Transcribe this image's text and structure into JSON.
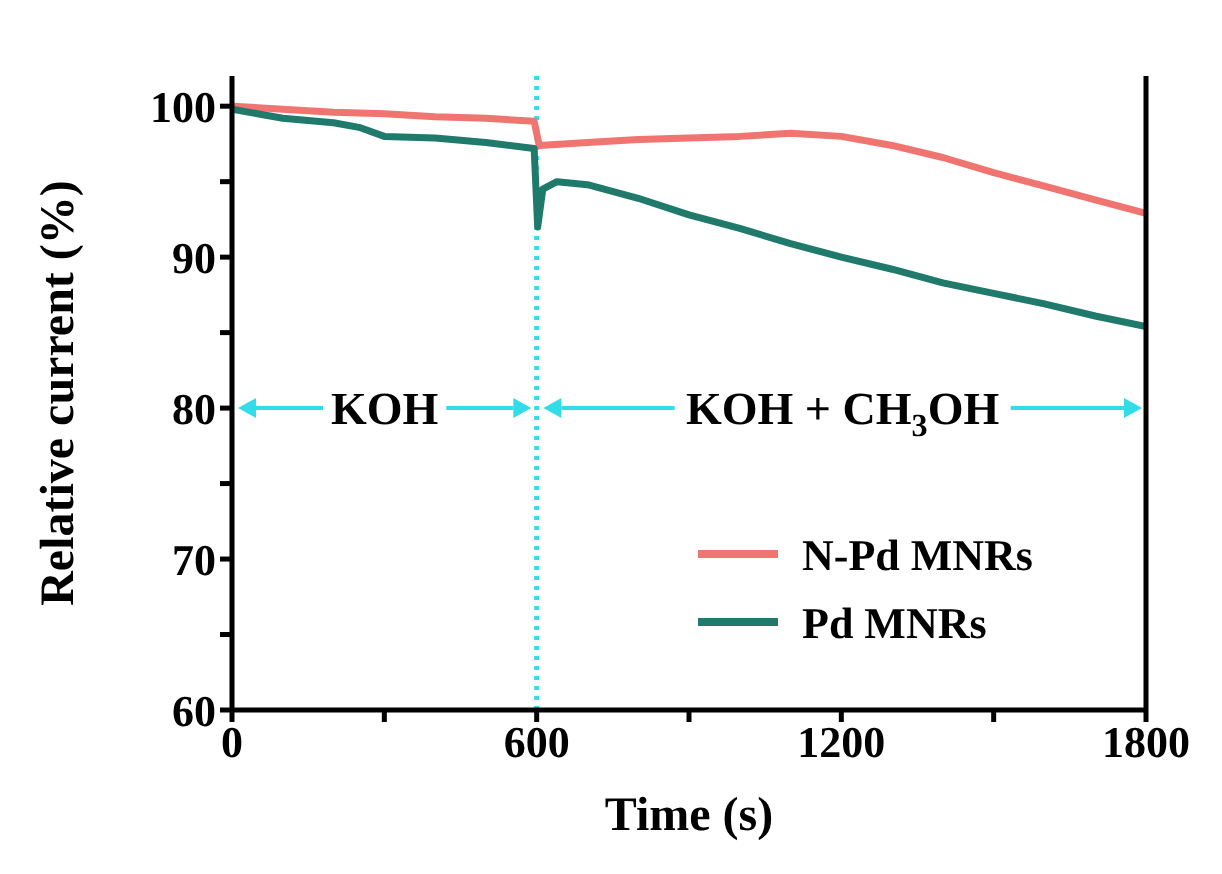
{
  "chart_data": {
    "type": "line",
    "xlabel": "Time (s)",
    "ylabel": "Relative current (%)",
    "xlim": [
      0,
      1800
    ],
    "xticks": [
      0,
      {
        "value": 300,
        "label": null
      },
      600,
      {
        "value": 900,
        "label": null
      },
      1200,
      {
        "value": 1500,
        "label": null
      },
      1800
    ],
    "ylim": [
      60,
      102
    ],
    "yticks": [
      60,
      {
        "value": 65,
        "label": null
      },
      70,
      {
        "value": 75,
        "label": null
      },
      80,
      {
        "value": 85,
        "label": null
      },
      90,
      {
        "value": 95,
        "label": null
      },
      100
    ],
    "grid": false,
    "legend": "bottom right",
    "marker": "none",
    "line_style": "solid",
    "series": [
      {
        "name": "N-Pd MNRs",
        "color": "#f07470",
        "x": [
          0,
          100,
          200,
          300,
          400,
          500,
          595,
          605,
          700,
          800,
          900,
          1000,
          1100,
          1200,
          1300,
          1400,
          1500,
          1600,
          1700,
          1800
        ],
        "values": [
          100,
          99.8,
          99.6,
          99.5,
          99.3,
          99.2,
          99.0,
          97.4,
          97.6,
          97.8,
          97.9,
          98.0,
          98.2,
          98.0,
          97.4,
          96.6,
          95.6,
          94.7,
          93.8,
          92.9
        ]
      },
      {
        "name": "Pd MNRs",
        "color": "#1f7a6c",
        "x": [
          0,
          100,
          200,
          250,
          300,
          400,
          500,
          595,
          602,
          612,
          640,
          700,
          800,
          900,
          1000,
          1100,
          1200,
          1300,
          1400,
          1500,
          1600,
          1700,
          1800
        ],
        "values": [
          99.8,
          99.2,
          98.9,
          98.6,
          98.0,
          97.9,
          97.6,
          97.2,
          92.0,
          94.5,
          95.0,
          94.8,
          93.9,
          92.8,
          91.9,
          90.9,
          90.0,
          89.2,
          88.3,
          87.6,
          86.9,
          86.1,
          85.4
        ]
      }
    ],
    "ref_lines": [
      {
        "axis": "x",
        "value": 600,
        "color": "#33dde8",
        "line_style": "dotted"
      }
    ],
    "annotations": [
      "KOH",
      "KOH + CH$_{3}$OH"
    ]
  }
}
